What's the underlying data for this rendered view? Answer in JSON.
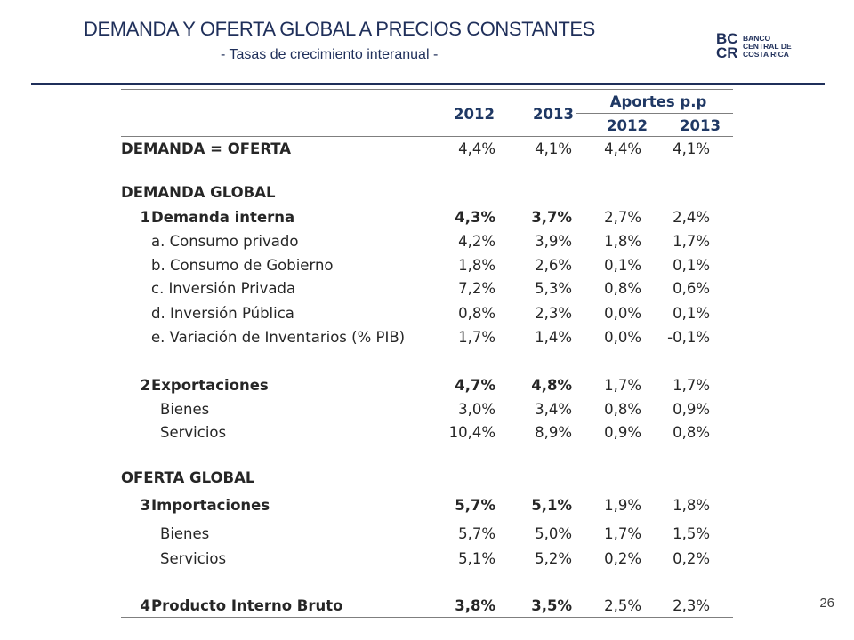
{
  "header": {
    "title": "DEMANDA Y OFERTA GLOBAL A PRECIOS CONSTANTES",
    "subtitle": "- Tasas de crecimiento interanual -"
  },
  "logo": {
    "mark": [
      "BC",
      "CR"
    ],
    "text_lines": [
      "BANCO",
      "CENTRAL DE",
      "COSTA RICA"
    ]
  },
  "table": {
    "col_headers": {
      "y2012": "2012",
      "y2013": "2013",
      "group": "Aportes p.p",
      "sub2012": "2012",
      "sub2013": "2013"
    },
    "rows": [
      {
        "num": "",
        "label": "DEMANDA = OFERTA",
        "v2012": "4,4%",
        "v2013": "4,1%",
        "a2012": "4,4%",
        "a2013": "4,1%",
        "bold_label": true,
        "bold_vals": false,
        "indent": 0
      },
      {
        "num": "",
        "label": "DEMANDA GLOBAL",
        "v2012": "",
        "v2013": "",
        "a2012": "",
        "a2013": "",
        "bold_label": true,
        "bold_vals": false,
        "indent": 0
      },
      {
        "num": "1",
        "label": "Demanda interna",
        "v2012": "4,3%",
        "v2013": "3,7%",
        "a2012": "2,7%",
        "a2013": "2,4%",
        "bold_label": true,
        "bold_vals": true,
        "indent": 1
      },
      {
        "num": "",
        "label": "a. Consumo privado",
        "v2012": "4,2%",
        "v2013": "3,9%",
        "a2012": "1,8%",
        "a2013": "1,7%",
        "bold_label": false,
        "bold_vals": false,
        "indent": 2
      },
      {
        "num": "",
        "label": "b. Consumo de Gobierno",
        "v2012": "1,8%",
        "v2013": "2,6%",
        "a2012": "0,1%",
        "a2013": "0,1%",
        "bold_label": false,
        "bold_vals": false,
        "indent": 2
      },
      {
        "num": "",
        "label": "c. Inversión Privada",
        "v2012": "7,2%",
        "v2013": "5,3%",
        "a2012": "0,8%",
        "a2013": "0,6%",
        "bold_label": false,
        "bold_vals": false,
        "indent": 2
      },
      {
        "num": "",
        "label": "d. Inversión Pública",
        "v2012": "0,8%",
        "v2013": "2,3%",
        "a2012": "0,0%",
        "a2013": "0,1%",
        "bold_label": false,
        "bold_vals": false,
        "indent": 2
      },
      {
        "num": "",
        "label": "e. Variación de Inventarios (% PIB)",
        "v2012": "1,7%",
        "v2013": "1,4%",
        "a2012": "0,0%",
        "a2013": "-0,1%",
        "bold_label": false,
        "bold_vals": false,
        "indent": 2
      },
      {
        "num": "2",
        "label": "Exportaciones",
        "v2012": "4,7%",
        "v2013": "4,8%",
        "a2012": "1,7%",
        "a2013": "1,7%",
        "bold_label": true,
        "bold_vals": true,
        "indent": 1
      },
      {
        "num": "",
        "label": "Bienes",
        "v2012": "3,0%",
        "v2013": "3,4%",
        "a2012": "0,8%",
        "a2013": "0,9%",
        "bold_label": false,
        "bold_vals": false,
        "indent": 3
      },
      {
        "num": "",
        "label": "Servicios",
        "v2012": "10,4%",
        "v2013": "8,9%",
        "a2012": "0,9%",
        "a2013": "0,8%",
        "bold_label": false,
        "bold_vals": false,
        "indent": 3
      },
      {
        "num": "",
        "label": "OFERTA GLOBAL",
        "v2012": "",
        "v2013": "",
        "a2012": "",
        "a2013": "",
        "bold_label": true,
        "bold_vals": false,
        "indent": 0
      },
      {
        "num": "3",
        "label": "Importaciones",
        "v2012": "5,7%",
        "v2013": "5,1%",
        "a2012": "1,9%",
        "a2013": "1,8%",
        "bold_label": true,
        "bold_vals": true,
        "indent": 1
      },
      {
        "num": "",
        "label": "Bienes",
        "v2012": "5,7%",
        "v2013": "5,0%",
        "a2012": "1,7%",
        "a2013": "1,5%",
        "bold_label": false,
        "bold_vals": false,
        "indent": 3
      },
      {
        "num": "",
        "label": "Servicios",
        "v2012": "5,1%",
        "v2013": "5,2%",
        "a2012": "0,2%",
        "a2013": "0,2%",
        "bold_label": false,
        "bold_vals": false,
        "indent": 3
      },
      {
        "num": "4",
        "label": "Producto Interno Bruto",
        "v2012": "3,8%",
        "v2013": "3,5%",
        "a2012": "2,5%",
        "a2013": "2,3%",
        "bold_label": true,
        "bold_vals": true,
        "indent": 1
      }
    ]
  },
  "page_number": "26",
  "colors": {
    "title": "#1f2f5a",
    "header_text": "#1f3864",
    "body_text": "#262626",
    "rule": "#1f2f5a",
    "table_lines": "#7f7f7f"
  }
}
